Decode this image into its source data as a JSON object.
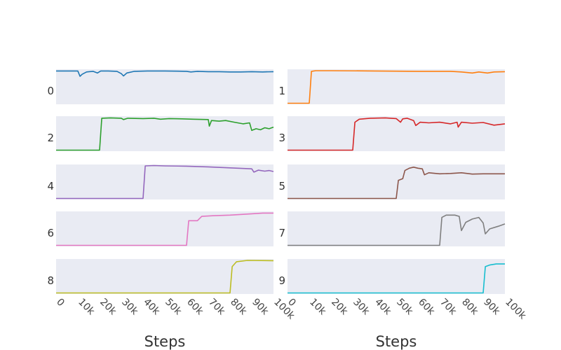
{
  "chart_data": {
    "type": "line",
    "layout": "small-multiples-5x2",
    "x_ticks": [
      0,
      10000,
      20000,
      30000,
      40000,
      50000,
      60000,
      70000,
      80000,
      90000,
      100000
    ],
    "x_tick_labels": [
      "0",
      "10k",
      "20k",
      "30k",
      "40k",
      "50k",
      "60k",
      "70k",
      "80k",
      "90k",
      "100k"
    ],
    "xlabel": "Steps",
    "xlim": [
      0,
      100000
    ],
    "ylim": [
      0,
      1
    ],
    "grid": false,
    "legend": "none",
    "panels": [
      {
        "label": "0",
        "color": "#1f77b4",
        "points": [
          [
            0,
            0.98
          ],
          [
            10000,
            0.98
          ],
          [
            11000,
            0.82
          ],
          [
            12000,
            0.88
          ],
          [
            14000,
            0.95
          ],
          [
            17000,
            0.97
          ],
          [
            19000,
            0.92
          ],
          [
            20500,
            0.98
          ],
          [
            24000,
            0.98
          ],
          [
            28000,
            0.97
          ],
          [
            30000,
            0.9
          ],
          [
            31000,
            0.83
          ],
          [
            32500,
            0.92
          ],
          [
            36000,
            0.97
          ],
          [
            42000,
            0.98
          ],
          [
            50000,
            0.98
          ],
          [
            60000,
            0.97
          ],
          [
            62000,
            0.95
          ],
          [
            65000,
            0.97
          ],
          [
            70000,
            0.96
          ],
          [
            75000,
            0.96
          ],
          [
            80000,
            0.95
          ],
          [
            85000,
            0.95
          ],
          [
            90000,
            0.96
          ],
          [
            95000,
            0.95
          ],
          [
            100000,
            0.96
          ]
        ]
      },
      {
        "label": "1",
        "color": "#ff7f0e",
        "points": [
          [
            0,
            0
          ],
          [
            10000,
            0
          ],
          [
            11000,
            0.97
          ],
          [
            13000,
            0.99
          ],
          [
            20000,
            0.99
          ],
          [
            40000,
            0.98
          ],
          [
            60000,
            0.97
          ],
          [
            75000,
            0.97
          ],
          [
            80000,
            0.95
          ],
          [
            85000,
            0.92
          ],
          [
            88000,
            0.95
          ],
          [
            92000,
            0.92
          ],
          [
            95000,
            0.95
          ],
          [
            100000,
            0.96
          ]
        ]
      },
      {
        "label": "2",
        "color": "#2ca02c",
        "points": [
          [
            0,
            0
          ],
          [
            20000,
            0
          ],
          [
            21000,
            0.97
          ],
          [
            25000,
            0.98
          ],
          [
            30000,
            0.97
          ],
          [
            31000,
            0.93
          ],
          [
            33000,
            0.97
          ],
          [
            40000,
            0.96
          ],
          [
            45000,
            0.97
          ],
          [
            48000,
            0.94
          ],
          [
            52000,
            0.96
          ],
          [
            58000,
            0.95
          ],
          [
            63000,
            0.94
          ],
          [
            70000,
            0.93
          ],
          [
            70500,
            0.73
          ],
          [
            71500,
            0.9
          ],
          [
            75000,
            0.88
          ],
          [
            78000,
            0.9
          ],
          [
            82000,
            0.85
          ],
          [
            86000,
            0.8
          ],
          [
            89000,
            0.83
          ],
          [
            90000,
            0.6
          ],
          [
            92000,
            0.65
          ],
          [
            94000,
            0.62
          ],
          [
            96000,
            0.68
          ],
          [
            98000,
            0.65
          ],
          [
            100000,
            0.7
          ]
        ]
      },
      {
        "label": "3",
        "color": "#d62728",
        "points": [
          [
            0,
            0
          ],
          [
            30000,
            0
          ],
          [
            31000,
            0.85
          ],
          [
            33000,
            0.94
          ],
          [
            38000,
            0.97
          ],
          [
            45000,
            0.98
          ],
          [
            50000,
            0.96
          ],
          [
            52000,
            0.85
          ],
          [
            53000,
            0.95
          ],
          [
            55000,
            0.97
          ],
          [
            58000,
            0.9
          ],
          [
            59000,
            0.75
          ],
          [
            61000,
            0.85
          ],
          [
            65000,
            0.83
          ],
          [
            70000,
            0.85
          ],
          [
            75000,
            0.8
          ],
          [
            78000,
            0.85
          ],
          [
            78500,
            0.7
          ],
          [
            80000,
            0.85
          ],
          [
            85000,
            0.82
          ],
          [
            90000,
            0.84
          ],
          [
            95000,
            0.76
          ],
          [
            100000,
            0.8
          ]
        ]
      },
      {
        "label": "4",
        "color": "#9467bd",
        "points": [
          [
            0,
            0
          ],
          [
            40000,
            0
          ],
          [
            41000,
            0.99
          ],
          [
            45000,
            1.0
          ],
          [
            50000,
            0.99
          ],
          [
            60000,
            0.98
          ],
          [
            70000,
            0.96
          ],
          [
            80000,
            0.93
          ],
          [
            90000,
            0.9
          ],
          [
            91000,
            0.8
          ],
          [
            93000,
            0.86
          ],
          [
            96000,
            0.83
          ],
          [
            98000,
            0.85
          ],
          [
            100000,
            0.82
          ]
        ]
      },
      {
        "label": "5",
        "color": "#8c564b",
        "points": [
          [
            0,
            0
          ],
          [
            50000,
            0
          ],
          [
            51000,
            0.55
          ],
          [
            53000,
            0.6
          ],
          [
            54000,
            0.85
          ],
          [
            56000,
            0.92
          ],
          [
            58000,
            0.95
          ],
          [
            60000,
            0.92
          ],
          [
            62000,
            0.9
          ],
          [
            63000,
            0.72
          ],
          [
            65000,
            0.78
          ],
          [
            70000,
            0.75
          ],
          [
            75000,
            0.76
          ],
          [
            80000,
            0.78
          ],
          [
            85000,
            0.74
          ],
          [
            90000,
            0.75
          ],
          [
            100000,
            0.75
          ]
        ]
      },
      {
        "label": "6",
        "color": "#e377c2",
        "points": [
          [
            0,
            0
          ],
          [
            60000,
            0
          ],
          [
            61000,
            0.75
          ],
          [
            65000,
            0.75
          ],
          [
            67000,
            0.88
          ],
          [
            72000,
            0.9
          ],
          [
            80000,
            0.92
          ],
          [
            90000,
            0.96
          ],
          [
            95000,
            0.98
          ],
          [
            100000,
            0.98
          ]
        ]
      },
      {
        "label": "7",
        "color": "#7f7f7f",
        "points": [
          [
            0,
            0
          ],
          [
            70000,
            0
          ],
          [
            71000,
            0.85
          ],
          [
            73000,
            0.92
          ],
          [
            77000,
            0.92
          ],
          [
            79000,
            0.88
          ],
          [
            80000,
            0.45
          ],
          [
            82000,
            0.7
          ],
          [
            85000,
            0.8
          ],
          [
            88000,
            0.85
          ],
          [
            90000,
            0.68
          ],
          [
            91000,
            0.35
          ],
          [
            93000,
            0.5
          ],
          [
            97000,
            0.58
          ],
          [
            100000,
            0.65
          ]
        ]
      },
      {
        "label": "8",
        "color": "#bcbd22",
        "points": [
          [
            0,
            0
          ],
          [
            80000,
            0
          ],
          [
            81000,
            0.8
          ],
          [
            83000,
            0.95
          ],
          [
            88000,
            0.99
          ],
          [
            100000,
            0.98
          ]
        ]
      },
      {
        "label": "9",
        "color": "#17becf",
        "points": [
          [
            0,
            0
          ],
          [
            90000,
            0
          ],
          [
            91000,
            0.8
          ],
          [
            93000,
            0.85
          ],
          [
            96000,
            0.88
          ],
          [
            100000,
            0.88
          ]
        ]
      }
    ]
  }
}
